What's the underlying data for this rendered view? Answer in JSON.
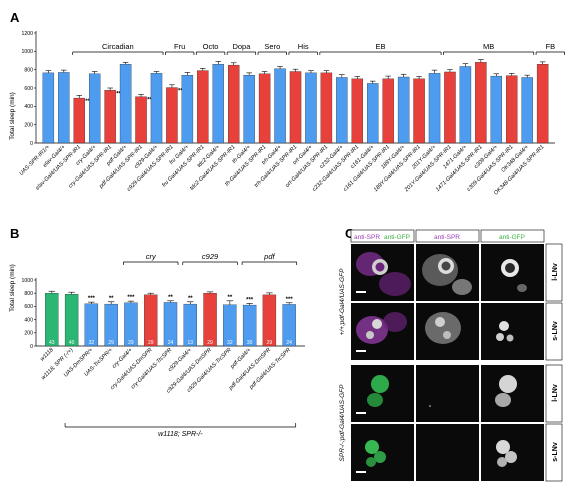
{
  "panel_labels": {
    "a": "A",
    "b": "B",
    "c": "C"
  },
  "colors": {
    "control": "#4d9cf0",
    "experimental": "#e8403a",
    "green": "#2bb673",
    "microscopy_bg": "#000000",
    "anti_spr": "#9b3fb5",
    "anti_gfp": "#3cb043"
  },
  "chart_data": [
    {
      "id": "A",
      "type": "bar",
      "ylabel": "Total sleep (min)",
      "ylim": [
        0,
        1200
      ],
      "yticks": [
        0,
        200,
        400,
        600,
        800,
        1000,
        1200
      ],
      "groups": [
        {
          "label": "Circadian",
          "start": 2,
          "end": 7
        },
        {
          "label": "Fru",
          "start": 8,
          "end": 9
        },
        {
          "label": "Octo",
          "start": 10,
          "end": 11
        },
        {
          "label": "Dopa",
          "start": 12,
          "end": 13
        },
        {
          "label": "Sero",
          "start": 14,
          "end": 15
        },
        {
          "label": "His",
          "start": 16,
          "end": 17
        },
        {
          "label": "EB",
          "start": 18,
          "end": 25
        },
        {
          "label": "MB",
          "start": 26,
          "end": 31
        },
        {
          "label": "FB",
          "start": 32,
          "end": 33
        }
      ],
      "categories": [
        "UAS-SPR-IR1/+",
        "elav-Gal4/+",
        "elav-Gal4/UAS-SPR-IR1",
        "cry-Gal4/+",
        "cry-Gal4/UAS-SPR-IR1",
        "pdf-Gal4/+",
        "pdf-Gal4/UAS-SPR-IR1",
        "c929-Gal4/+",
        "c929-Gal4/UAS-SPR-IR1",
        "fru Gal4/+",
        "fru Gal4/UAS-SPR-IR1",
        "tdc2-Gal4/+",
        "tdc2-Gal4/UAS-SPR-IR1",
        "th-Gal4/+",
        "th-Gal4/UAS-SPR-IR1",
        "trh-Gal4/+",
        "trh-Gal4/UAS-SPR-IR1",
        "ort-Gal4/+",
        "ort-Gal4/UAS-SPR-IR1",
        "c232-Gal4/+",
        "c232-Gal4/UAS-SPR-IR1",
        "c161-Gal4/+",
        "c161-Gal4/UAS-SPR-IR1",
        "189Y-Gal4/+",
        "189Y-Gal4/UAS-SPR-IR1",
        "201Y-Gal4/+",
        "201Y-Gal4/UAS-SPR-IR1",
        "1471-Gal4/+",
        "1471-Gal4/UAS-SPR-IR1",
        "c309-Gal4/+",
        "c309-Gal4/UAS-SPR-IR1",
        "OK348-Gal4/+",
        "OK348-Gal4/UAS-SPR-IR1"
      ],
      "values": [
        765,
        770,
        490,
        755,
        575,
        860,
        505,
        760,
        605,
        740,
        790,
        860,
        850,
        740,
        755,
        810,
        780,
        765,
        765,
        715,
        700,
        650,
        700,
        720,
        700,
        760,
        775,
        835,
        880,
        730,
        735,
        715,
        860
      ],
      "errors": [
        25,
        25,
        30,
        25,
        25,
        20,
        25,
        20,
        30,
        30,
        25,
        30,
        25,
        25,
        25,
        25,
        25,
        25,
        25,
        30,
        25,
        25,
        30,
        30,
        25,
        35,
        25,
        30,
        30,
        25,
        25,
        25,
        25
      ],
      "colors": [
        "control",
        "control",
        "experimental",
        "control",
        "experimental",
        "control",
        "experimental",
        "control",
        "experimental",
        "control",
        "experimental",
        "control",
        "experimental",
        "control",
        "experimental",
        "control",
        "experimental",
        "control",
        "experimental",
        "control",
        "experimental",
        "control",
        "experimental",
        "control",
        "experimental",
        "control",
        "experimental",
        "control",
        "experimental",
        "control",
        "experimental",
        "control",
        "experimental"
      ],
      "significance": [
        "",
        "",
        "***",
        "",
        "***",
        "",
        "***",
        "",
        "***",
        "",
        "",
        "",
        "",
        "",
        "",
        "",
        "",
        "",
        "",
        "",
        "",
        "",
        "",
        "",
        "",
        "",
        "",
        "",
        "",
        "",
        "",
        "",
        ""
      ]
    },
    {
      "id": "B",
      "type": "bar",
      "ylabel": "Total sleep (min)",
      "ylim": [
        0,
        1000
      ],
      "yticks": [
        0,
        200,
        400,
        600,
        800,
        1000
      ],
      "groups": [
        {
          "label": "cry",
          "start": 4,
          "end": 6
        },
        {
          "label": "c929",
          "start": 7,
          "end": 9
        },
        {
          "label": "pdf",
          "start": 10,
          "end": 12
        }
      ],
      "bottom_bracket": {
        "label": "w1118; SPR-/-",
        "start": 1,
        "end": 12
      },
      "categories": [
        "w1118",
        "w1118; SPR (-/+)",
        "UAS-DmSPR/+",
        "UAS-TrcSPR/+",
        "cry-Gal4/+",
        "cry-Gal4/UAS-DmSPR",
        "cry-Gal4/UAS-TrcSPR",
        "c929-Gal4/+",
        "c929-Gal4/UAS-DmSPR",
        "c929-Gal4/UAS-TrcSPR",
        "pdf-Gal4/+",
        "pdf-Gal4/UAS-DmSPR",
        "pdf-Gal4/UAS-TrcSPR"
      ],
      "values": [
        800,
        785,
        640,
        635,
        655,
        775,
        660,
        635,
        800,
        625,
        620,
        775,
        630
      ],
      "errors": [
        30,
        30,
        25,
        35,
        25,
        25,
        25,
        35,
        20,
        60,
        25,
        30,
        25
      ],
      "n": [
        "43",
        "40",
        "32",
        "29",
        "29",
        "29",
        "24",
        "13",
        "29",
        "32",
        "30",
        "29",
        "24"
      ],
      "colors": [
        "green",
        "green",
        "control",
        "control",
        "control",
        "experimental",
        "control",
        "control",
        "experimental",
        "control",
        "control",
        "experimental",
        "control"
      ],
      "significance": [
        "",
        "",
        "***",
        "**",
        "***",
        "",
        "**",
        "**",
        "",
        "**",
        "***",
        "",
        "***"
      ]
    }
  ],
  "microscopy": {
    "column_headers": [
      {
        "part1": "anti-SPR",
        "part2": "anti-GFP"
      },
      {
        "part1": "anti-SPR",
        "part2": ""
      },
      {
        "part1": "anti-GFP",
        "part2": ""
      }
    ],
    "row_labels": [
      "l-LNv",
      "s-LNv",
      "l-LNv",
      "s-LNv"
    ],
    "genotype_labels": [
      "+/+;pdf-Gal4/UAS-GFP",
      "SPR-/-;pdf-Gal4/UAS-GFP"
    ]
  }
}
